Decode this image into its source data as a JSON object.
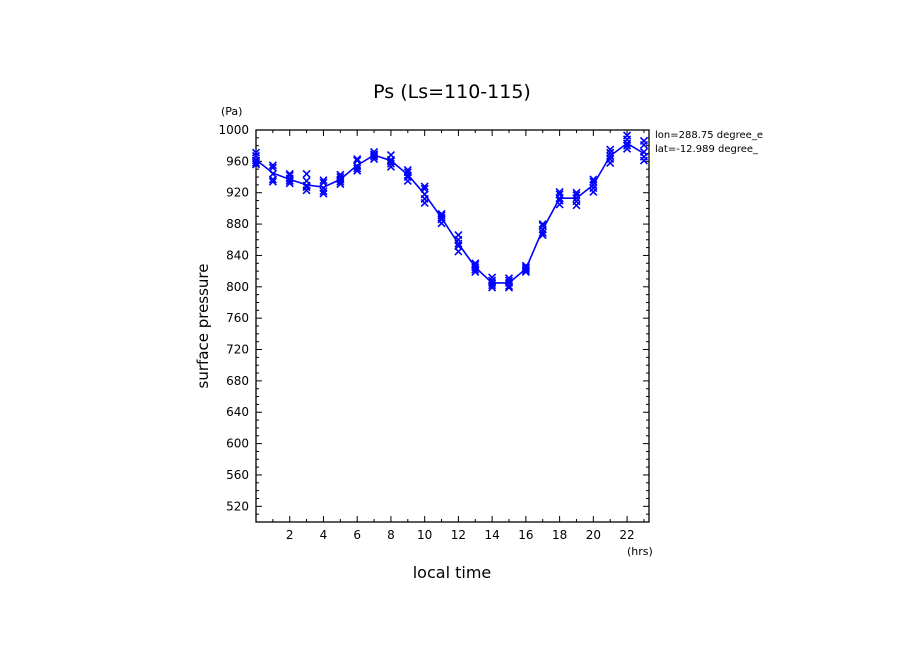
{
  "chart_data": {
    "type": "line",
    "title": "Ps (Ls=110-115)",
    "xlabel": "local time",
    "ylabel": "surface pressure",
    "xunit": "(hrs)",
    "yunit": "(Pa)",
    "xlim": [
      0,
      23.3
    ],
    "ylim": [
      500,
      1000
    ],
    "xticks": [
      2,
      4,
      6,
      8,
      10,
      12,
      14,
      16,
      18,
      20,
      22
    ],
    "yticks": [
      520,
      560,
      600,
      640,
      680,
      720,
      760,
      800,
      840,
      880,
      920,
      960,
      1000
    ],
    "annotations": [
      "lon=288.75 degree_e",
      "lat=-12.989 degree_"
    ],
    "grid": false,
    "series": [
      {
        "color": "#0000ff",
        "x": [
          0,
          1,
          2,
          3,
          4,
          5,
          6,
          7,
          8,
          9,
          10,
          11,
          12,
          13,
          14,
          15,
          16,
          17,
          18,
          19,
          20,
          21,
          22,
          23
        ],
        "y": [
          962,
          945,
          937,
          930,
          927,
          937,
          955,
          968,
          961,
          943,
          918,
          888,
          855,
          825,
          805,
          805,
          823,
          873,
          913,
          913,
          930,
          967,
          983,
          970
        ],
        "scatter": [
          [
            961,
            967,
            956,
            971,
            958
          ],
          [
            944,
            952,
            937,
            955,
            934
          ],
          [
            938,
            944,
            932,
            942,
            935
          ],
          [
            929,
            935,
            923,
            944,
            927
          ],
          [
            926,
            933,
            919,
            936,
            922
          ],
          [
            937,
            943,
            931,
            940,
            934
          ],
          [
            954,
            961,
            948,
            963,
            951
          ],
          [
            968,
            972,
            963,
            966,
            969
          ],
          [
            960,
            968,
            953,
            962,
            957
          ],
          [
            942,
            949,
            935,
            946,
            940
          ],
          [
            918,
            925,
            907,
            928,
            912
          ],
          [
            888,
            893,
            881,
            886,
            891
          ],
          [
            855,
            866,
            845,
            852,
            860
          ],
          [
            825,
            830,
            819,
            828,
            822
          ],
          [
            805,
            812,
            799,
            808,
            802
          ],
          [
            805,
            811,
            799,
            808,
            801
          ],
          [
            823,
            827,
            819,
            825,
            821
          ],
          [
            873,
            880,
            866,
            878,
            869
          ],
          [
            913,
            921,
            905,
            918,
            910
          ],
          [
            913,
            920,
            904,
            917,
            909
          ],
          [
            930,
            937,
            921,
            934,
            926
          ],
          [
            967,
            975,
            958,
            971,
            963
          ],
          [
            983,
            993,
            976,
            988,
            980
          ],
          [
            972,
            981,
            961,
            986,
            966
          ]
        ]
      }
    ]
  }
}
